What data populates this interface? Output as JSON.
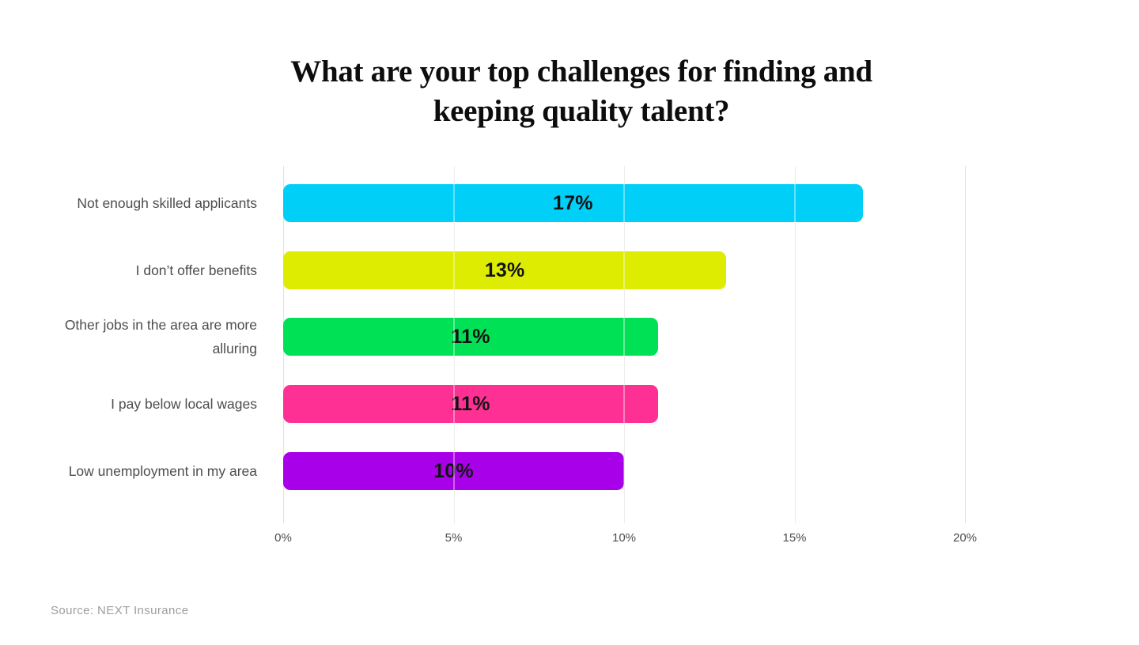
{
  "title": {
    "line1": "What are your top challenges for finding and",
    "line2": "keeping quality talent?"
  },
  "source": "Source: NEXT Insurance",
  "chart_data": {
    "type": "bar",
    "orientation": "horizontal",
    "title": "What are your top challenges for finding and keeping quality talent?",
    "categories": [
      "Not enough skilled applicants",
      "I don’t offer benefits",
      "Other jobs in the area are more alluring",
      "I pay below local wages",
      "Low unemployment in my area"
    ],
    "values": [
      17,
      13,
      11,
      11,
      10
    ],
    "value_labels": [
      "17%",
      "13%",
      "11%",
      "11%",
      "10%"
    ],
    "bar_colors": [
      "#00CFF8",
      "#DDEC00",
      "#00E156",
      "#FF3094",
      "#A800E8"
    ],
    "x_ticks": [
      "0%",
      "5%",
      "10%",
      "15%",
      "20%"
    ],
    "xlim": [
      0,
      20
    ],
    "xlabel": "",
    "ylabel": "",
    "grid": "vertical",
    "gridline_color": "#e2e2e2",
    "legend": false,
    "value_label_position": "center",
    "background": "#FFFFFF"
  }
}
